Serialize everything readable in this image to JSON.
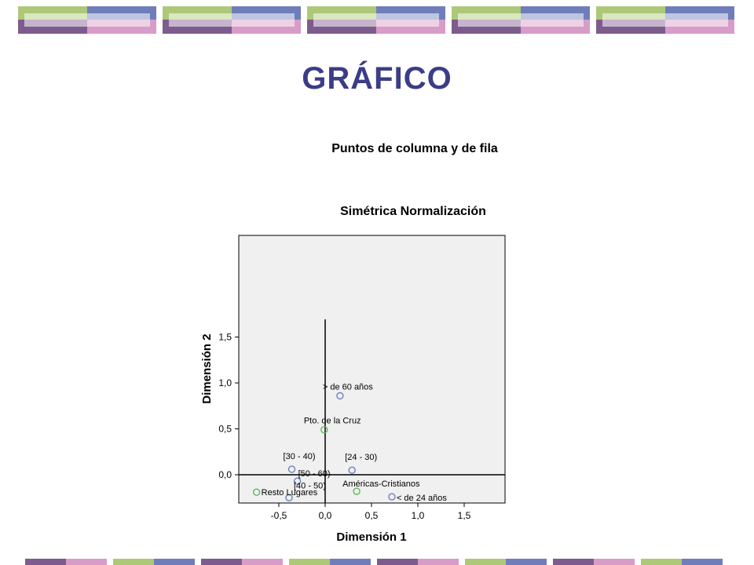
{
  "slide": {
    "title": "GRÁFICO"
  },
  "chart_data": {
    "type": "scatter",
    "title": "Puntos de columna y de fila",
    "subtitle": "Simétrica Normalización",
    "xlabel": "Dimensión 1",
    "ylabel": "Dimensión 2",
    "xlim": [
      -0.95,
      1.95
    ],
    "ylim": [
      -0.3,
      3.4
    ],
    "x_ticks": [
      -0.5,
      0.0,
      0.5,
      1.0,
      1.5
    ],
    "y_ticks": [
      0.0,
      0.5,
      1.0,
      1.5
    ],
    "x_tick_labels": [
      "-0,5",
      "0,0",
      "0,5",
      "1,0",
      "1,5"
    ],
    "y_tick_labels": [
      "0,0",
      "0,5",
      "1,0",
      "1,5"
    ],
    "reference_lines": {
      "x": 0.0,
      "y": 0.0
    },
    "grid": false,
    "series": [
      {
        "color": "#6b80c0",
        "points": [
          {
            "label": "> de 60 años",
            "x": 0.16,
            "y": 0.86
          },
          {
            "label": "[30 - 40)",
            "x": -0.36,
            "y": 0.06
          },
          {
            "label": "[24 - 30)",
            "x": 0.29,
            "y": 0.05
          },
          {
            "label": "[50 - 60)",
            "x": -0.3,
            "y": -0.07
          },
          {
            "label": "[40 - 50)",
            "x": -0.39,
            "y": -0.25
          },
          {
            "label": "< de 24 años",
            "x": 0.72,
            "y": -0.24
          }
        ]
      },
      {
        "color": "#5cb85c",
        "points": [
          {
            "label": "Pto. de la Cruz",
            "x": -0.01,
            "y": 0.49
          },
          {
            "label": "Américas-Cristianos",
            "x": 0.34,
            "y": -0.18
          },
          {
            "label": "Resto Lugares",
            "x": -0.74,
            "y": -0.19
          }
        ]
      }
    ]
  },
  "colors": {
    "title": "#3b3d87",
    "green": "#adc977",
    "blue": "#6f7ebb",
    "purple": "#7e5b8f",
    "pink": "#d89cc8",
    "plot_bg": "#f0f0f0"
  }
}
